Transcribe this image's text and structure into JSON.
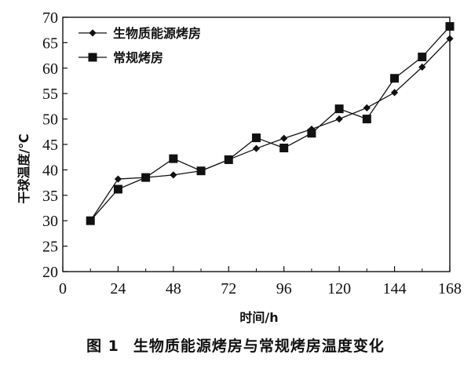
{
  "chart_data": {
    "type": "line",
    "title": "",
    "xlabel": "时间/h",
    "ylabel": "干球温度/℃",
    "xlim": [
      0,
      168
    ],
    "ylim": [
      20,
      70
    ],
    "x_ticks": [
      "0",
      "24",
      "48",
      "72",
      "96",
      "120",
      "144",
      "168"
    ],
    "y_ticks": [
      "20",
      "25",
      "30",
      "35",
      "40",
      "45",
      "50",
      "55",
      "60",
      "65",
      "70"
    ],
    "legend_position": "top-left",
    "series": [
      {
        "name": "生物质能源烤房",
        "marker": "diamond",
        "x": [
          12,
          24,
          36,
          48,
          60,
          72,
          84,
          96,
          108,
          120,
          132,
          144,
          156,
          168
        ],
        "y": [
          30,
          38.2,
          38.5,
          39,
          39.8,
          42,
          44.2,
          46.2,
          48,
          50,
          52.2,
          55.2,
          60.2,
          65.8
        ]
      },
      {
        "name": "常规烤房",
        "marker": "square",
        "x": [
          12,
          24,
          36,
          48,
          60,
          72,
          84,
          96,
          108,
          120,
          132,
          144,
          156,
          168
        ],
        "y": [
          30,
          36.2,
          38.5,
          42.2,
          39.8,
          42,
          46.3,
          44.3,
          47.2,
          52,
          50,
          58,
          62.2,
          68.2
        ]
      }
    ]
  },
  "caption": {
    "number": "图 1",
    "text": "生物质能源烤房与常规烤房温度变化"
  }
}
